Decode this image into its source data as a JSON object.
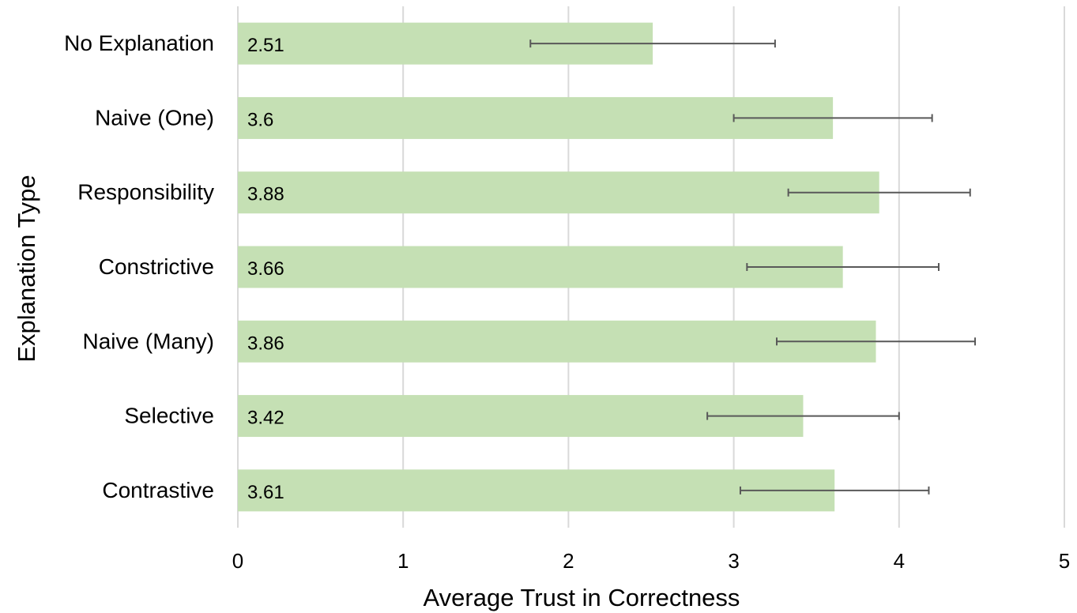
{
  "chart_data": {
    "type": "bar",
    "orientation": "horizontal",
    "categories": [
      "No Explanation",
      "Naive (One)",
      "Responsibility",
      "Constrictive",
      "Naive (Many)",
      "Selective",
      "Contrastive"
    ],
    "values": [
      2.51,
      3.6,
      3.88,
      3.66,
      3.86,
      3.42,
      3.61
    ],
    "value_labels": [
      "2.51",
      "3.6",
      "3.88",
      "3.66",
      "3.86",
      "3.42",
      "3.61"
    ],
    "error_low": [
      1.77,
      3.0,
      3.33,
      3.08,
      3.26,
      2.84,
      3.04
    ],
    "error_high": [
      3.25,
      4.2,
      4.43,
      4.24,
      4.46,
      4.0,
      4.18
    ],
    "xlabel": "Average Trust in Correctness",
    "ylabel": "Explanation Type",
    "xlim": [
      0,
      5
    ],
    "xticks": [
      "0",
      "1",
      "2",
      "3",
      "4",
      "5"
    ],
    "grid": "vertical",
    "bar_color": "#c5e0b4",
    "errorbar_color": "#595959",
    "gridline_color": "#d9d9d9"
  }
}
